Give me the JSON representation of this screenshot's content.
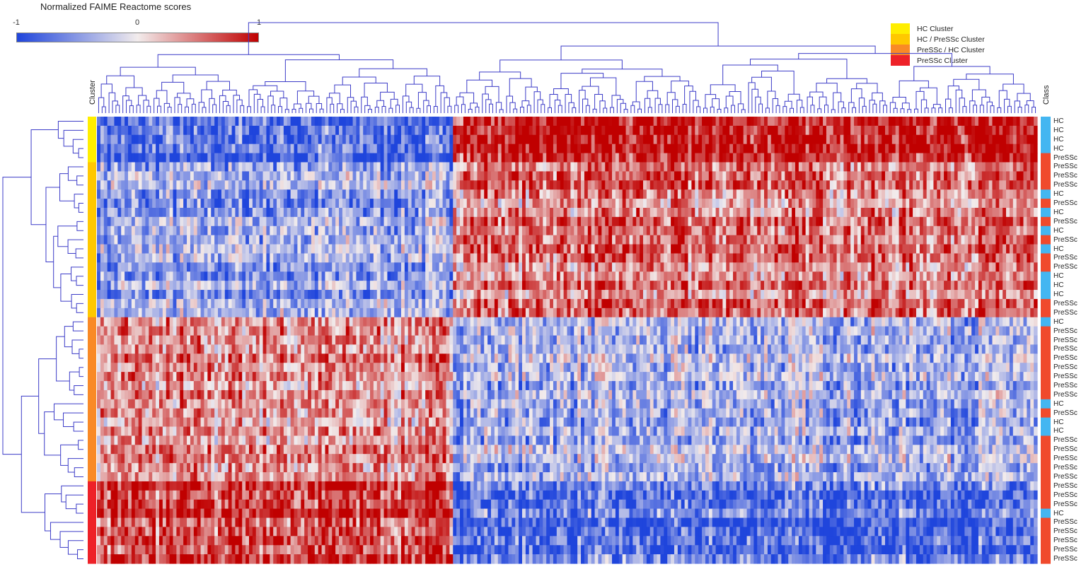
{
  "colorbar": {
    "title": "Normalized FAIME Reactome scores",
    "ticks": [
      "-1",
      "0",
      "1"
    ],
    "colors": {
      "low": "#1f45dc",
      "mid": "#f2ecec",
      "high": "#c00000"
    }
  },
  "legend": {
    "items": [
      {
        "label": "HC Cluster",
        "color": "#ffee00"
      },
      {
        "label": "HC / PreSSc Cluster",
        "color": "#ffc800"
      },
      {
        "label": "PreSSc / HC Cluster",
        "color": "#f98a26"
      },
      {
        "label": "PreSSc Cluster",
        "color": "#ee2128"
      }
    ]
  },
  "axis_titles": {
    "cluster": "Cluster",
    "class": "Class"
  },
  "class_colors": {
    "HC": "#44b6f1",
    "PreSSc": "#f04a2c"
  },
  "chart_data": {
    "type": "heatmap",
    "value_range": [
      -1,
      1
    ],
    "n_columns": 272,
    "rows": [
      {
        "class": "HC",
        "cluster": "HC Cluster"
      },
      {
        "class": "HC",
        "cluster": "HC Cluster"
      },
      {
        "class": "HC",
        "cluster": "HC Cluster"
      },
      {
        "class": "HC",
        "cluster": "HC Cluster"
      },
      {
        "class": "PreSSc",
        "cluster": "HC Cluster"
      },
      {
        "class": "PreSSc",
        "cluster": "HC / PreSSc Cluster"
      },
      {
        "class": "PreSSc",
        "cluster": "HC / PreSSc Cluster"
      },
      {
        "class": "PreSSc",
        "cluster": "HC / PreSSc Cluster"
      },
      {
        "class": "HC",
        "cluster": "HC / PreSSc Cluster"
      },
      {
        "class": "PreSSc",
        "cluster": "HC / PreSSc Cluster"
      },
      {
        "class": "HC",
        "cluster": "HC / PreSSc Cluster"
      },
      {
        "class": "PreSSc",
        "cluster": "HC / PreSSc Cluster"
      },
      {
        "class": "HC",
        "cluster": "HC / PreSSc Cluster"
      },
      {
        "class": "PreSSc",
        "cluster": "HC / PreSSc Cluster"
      },
      {
        "class": "HC",
        "cluster": "HC / PreSSc Cluster"
      },
      {
        "class": "PreSSc",
        "cluster": "HC / PreSSc Cluster"
      },
      {
        "class": "PreSSc",
        "cluster": "HC / PreSSc Cluster"
      },
      {
        "class": "HC",
        "cluster": "HC / PreSSc Cluster"
      },
      {
        "class": "HC",
        "cluster": "HC / PreSSc Cluster"
      },
      {
        "class": "HC",
        "cluster": "HC / PreSSc Cluster"
      },
      {
        "class": "PreSSc",
        "cluster": "HC / PreSSc Cluster"
      },
      {
        "class": "PreSSc",
        "cluster": "HC / PreSSc Cluster"
      },
      {
        "class": "HC",
        "cluster": "PreSSc / HC Cluster"
      },
      {
        "class": "PreSSc",
        "cluster": "PreSSc / HC Cluster"
      },
      {
        "class": "PreSSc",
        "cluster": "PreSSc / HC Cluster"
      },
      {
        "class": "PreSSc",
        "cluster": "PreSSc / HC Cluster"
      },
      {
        "class": "PreSSc",
        "cluster": "PreSSc / HC Cluster"
      },
      {
        "class": "PreSSc",
        "cluster": "PreSSc / HC Cluster"
      },
      {
        "class": "PreSSc",
        "cluster": "PreSSc / HC Cluster"
      },
      {
        "class": "PreSSc",
        "cluster": "PreSSc / HC Cluster"
      },
      {
        "class": "PreSSc",
        "cluster": "PreSSc / HC Cluster"
      },
      {
        "class": "HC",
        "cluster": "PreSSc / HC Cluster"
      },
      {
        "class": "PreSSc",
        "cluster": "PreSSc / HC Cluster"
      },
      {
        "class": "HC",
        "cluster": "PreSSc / HC Cluster"
      },
      {
        "class": "HC",
        "cluster": "PreSSc / HC Cluster"
      },
      {
        "class": "PreSSc",
        "cluster": "PreSSc / HC Cluster"
      },
      {
        "class": "PreSSc",
        "cluster": "PreSSc / HC Cluster"
      },
      {
        "class": "PreSSc",
        "cluster": "PreSSc / HC Cluster"
      },
      {
        "class": "PreSSc",
        "cluster": "PreSSc / HC Cluster"
      },
      {
        "class": "PreSSc",
        "cluster": "PreSSc / HC Cluster"
      },
      {
        "class": "PreSSc",
        "cluster": "PreSSc Cluster"
      },
      {
        "class": "PreSSc",
        "cluster": "PreSSc Cluster"
      },
      {
        "class": "PreSSc",
        "cluster": "PreSSc Cluster"
      },
      {
        "class": "HC",
        "cluster": "PreSSc Cluster"
      },
      {
        "class": "PreSSc",
        "cluster": "PreSSc Cluster"
      },
      {
        "class": "PreSSc",
        "cluster": "PreSSc Cluster"
      },
      {
        "class": "PreSSc",
        "cluster": "PreSSc Cluster"
      },
      {
        "class": "PreSSc",
        "cluster": "PreSSc Cluster"
      },
      {
        "class": "PreSSc",
        "cluster": "PreSSc Cluster"
      }
    ],
    "column_blocks": [
      {
        "span": 0.38,
        "levels": {
          "HC Cluster": -0.85,
          "HC / PreSSc Cluster": -0.45,
          "PreSSc / HC Cluster": 0.35,
          "PreSSc Cluster": 0.75
        }
      },
      {
        "span": 0.62,
        "levels": {
          "HC Cluster": 0.8,
          "HC / PreSSc Cluster": 0.45,
          "PreSSc / HC Cluster": -0.35,
          "PreSSc Cluster": -0.7
        }
      }
    ]
  }
}
